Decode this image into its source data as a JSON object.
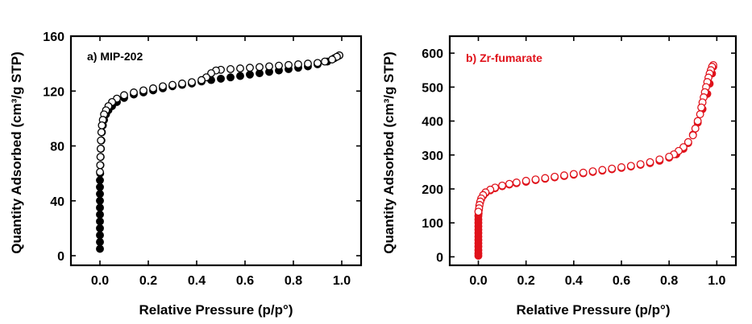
{
  "chart_data": [
    {
      "type": "scatter",
      "panel_label": "a) MIP-202",
      "panel_label_color": "#000000",
      "xlabel": "Relative Pressure (p/p°)",
      "ylabel": "Quantity Adsorbed (cm³/g STP)",
      "xlim": [
        -0.12,
        1.08
      ],
      "ylim": [
        -7,
        160
      ],
      "xticks": [
        0.0,
        0.2,
        0.4,
        0.6,
        0.8,
        1.0
      ],
      "xtick_labels": [
        "0.0",
        "0.2",
        "0.4",
        "0.6",
        "0.8",
        "1.0"
      ],
      "yticks": [
        0,
        40,
        80,
        120,
        160
      ],
      "ytick_labels": [
        "0",
        "40",
        "80",
        "120",
        "160"
      ],
      "series": [
        {
          "marker": "filled-circle",
          "color": "#000000",
          "points": [
            [
              0.0,
              5
            ],
            [
              0.0,
              10
            ],
            [
              0.0,
              15
            ],
            [
              0.0,
              20
            ],
            [
              0.0,
              25
            ],
            [
              0.0,
              30
            ],
            [
              0.0,
              35
            ],
            [
              0.0,
              40
            ],
            [
              0.0,
              45
            ],
            [
              0.0,
              50
            ],
            [
              0.0,
              55
            ],
            [
              0.001,
              60
            ],
            [
              0.002,
              66
            ],
            [
              0.003,
              72
            ],
            [
              0.004,
              78
            ],
            [
              0.006,
              84
            ],
            [
              0.008,
              90
            ],
            [
              0.012,
              95
            ],
            [
              0.017,
              99
            ],
            [
              0.025,
              103
            ],
            [
              0.035,
              106
            ],
            [
              0.05,
              109
            ],
            [
              0.07,
              112
            ],
            [
              0.1,
              115
            ],
            [
              0.14,
              117.5
            ],
            [
              0.18,
              119
            ],
            [
              0.22,
              120.5
            ],
            [
              0.26,
              122
            ],
            [
              0.3,
              123.5
            ],
            [
              0.34,
              124.5
            ],
            [
              0.38,
              125.5
            ],
            [
              0.42,
              127
            ],
            [
              0.46,
              128
            ],
            [
              0.5,
              129
            ],
            [
              0.54,
              130
            ],
            [
              0.58,
              131
            ],
            [
              0.62,
              132
            ],
            [
              0.66,
              133
            ],
            [
              0.7,
              134
            ],
            [
              0.74,
              135
            ],
            [
              0.78,
              136
            ],
            [
              0.82,
              137
            ],
            [
              0.86,
              138
            ],
            [
              0.9,
              139.5
            ],
            [
              0.94,
              141.5
            ],
            [
              0.97,
              144
            ],
            [
              0.99,
              146
            ]
          ]
        },
        {
          "marker": "open-circle",
          "color": "#000000",
          "points": [
            [
              0.99,
              146
            ],
            [
              0.98,
              145
            ],
            [
              0.96,
              143
            ],
            [
              0.93,
              141.5
            ],
            [
              0.9,
              140.5
            ],
            [
              0.86,
              140
            ],
            [
              0.82,
              139.5
            ],
            [
              0.78,
              139
            ],
            [
              0.74,
              138.5
            ],
            [
              0.7,
              138
            ],
            [
              0.66,
              137.5
            ],
            [
              0.62,
              137
            ],
            [
              0.58,
              136.5
            ],
            [
              0.54,
              136
            ],
            [
              0.5,
              135.5
            ],
            [
              0.48,
              135
            ],
            [
              0.46,
              133
            ],
            [
              0.44,
              130
            ],
            [
              0.42,
              128
            ],
            [
              0.38,
              126.5
            ],
            [
              0.34,
              125.5
            ],
            [
              0.3,
              124.5
            ],
            [
              0.26,
              123.5
            ],
            [
              0.22,
              122
            ],
            [
              0.18,
              120.5
            ],
            [
              0.14,
              119
            ],
            [
              0.1,
              117
            ],
            [
              0.07,
              114.5
            ],
            [
              0.05,
              112
            ],
            [
              0.035,
              109
            ],
            [
              0.025,
              106
            ],
            [
              0.017,
              103
            ],
            [
              0.012,
              99
            ],
            [
              0.008,
              95
            ],
            [
              0.006,
              90
            ],
            [
              0.004,
              84
            ],
            [
              0.003,
              78
            ],
            [
              0.002,
              72
            ],
            [
              0.001,
              66
            ],
            [
              0.0,
              61
            ]
          ]
        }
      ]
    },
    {
      "type": "scatter",
      "panel_label": "b) Zr-fumarate",
      "panel_label_color": "#e0121b",
      "xlabel": "Relative Pressure (p/p°)",
      "ylabel": "Quantity Adsorbed (cm³/g STP)",
      "xlim": [
        -0.12,
        1.08
      ],
      "ylim": [
        -25,
        650
      ],
      "xticks": [
        0.0,
        0.2,
        0.4,
        0.6,
        0.8,
        1.0
      ],
      "xtick_labels": [
        "0.0",
        "0.2",
        "0.4",
        "0.6",
        "0.8",
        "1.0"
      ],
      "yticks": [
        0,
        100,
        200,
        300,
        400,
        500,
        600
      ],
      "ytick_labels": [
        "0",
        "100",
        "200",
        "300",
        "400",
        "500",
        "600"
      ],
      "series": [
        {
          "marker": "filled-circle",
          "color": "#e0121b",
          "points": [
            [
              0.0,
              3
            ],
            [
              0.0,
              10
            ],
            [
              0.0,
              20
            ],
            [
              0.0,
              30
            ],
            [
              0.0,
              40
            ],
            [
              0.0,
              50
            ],
            [
              0.0,
              60
            ],
            [
              0.0,
              70
            ],
            [
              0.0,
              80
            ],
            [
              0.0,
              90
            ],
            [
              0.0,
              100
            ],
            [
              0.0,
              110
            ],
            [
              0.0,
              120
            ],
            [
              0.001,
              128
            ],
            [
              0.002,
              138
            ],
            [
              0.004,
              150
            ],
            [
              0.007,
              160
            ],
            [
              0.012,
              170
            ],
            [
              0.02,
              180
            ],
            [
              0.03,
              188
            ],
            [
              0.05,
              196
            ],
            [
              0.07,
              202
            ],
            [
              0.1,
              208
            ],
            [
              0.13,
              213
            ],
            [
              0.16,
              217
            ],
            [
              0.2,
              221
            ],
            [
              0.24,
              226
            ],
            [
              0.28,
              230
            ],
            [
              0.32,
              234
            ],
            [
              0.36,
              238
            ],
            [
              0.4,
              242
            ],
            [
              0.44,
              246
            ],
            [
              0.48,
              250
            ],
            [
              0.52,
              254
            ],
            [
              0.56,
              258
            ],
            [
              0.6,
              262
            ],
            [
              0.64,
              266
            ],
            [
              0.68,
              271
            ],
            [
              0.72,
              276
            ],
            [
              0.76,
              283
            ],
            [
              0.8,
              292
            ],
            [
              0.83,
              302
            ],
            [
              0.86,
              318
            ],
            [
              0.88,
              335
            ],
            [
              0.9,
              360
            ],
            [
              0.92,
              395
            ],
            [
              0.94,
              435
            ],
            [
              0.96,
              480
            ],
            [
              0.97,
              510
            ],
            [
              0.98,
              540
            ],
            [
              0.985,
              560
            ]
          ]
        },
        {
          "marker": "open-circle",
          "color": "#e0121b",
          "points": [
            [
              0.985,
              565
            ],
            [
              0.98,
              560
            ],
            [
              0.975,
              550
            ],
            [
              0.97,
              540
            ],
            [
              0.965,
              528
            ],
            [
              0.96,
              515
            ],
            [
              0.955,
              500
            ],
            [
              0.95,
              485
            ],
            [
              0.945,
              470
            ],
            [
              0.94,
              455
            ],
            [
              0.935,
              440
            ],
            [
              0.93,
              420
            ],
            [
              0.92,
              400
            ],
            [
              0.91,
              378
            ],
            [
              0.9,
              358
            ],
            [
              0.88,
              338
            ],
            [
              0.86,
              323
            ],
            [
              0.84,
              312
            ],
            [
              0.82,
              302
            ],
            [
              0.8,
              295
            ],
            [
              0.76,
              287
            ],
            [
              0.72,
              279
            ],
            [
              0.68,
              273
            ],
            [
              0.64,
              268
            ],
            [
              0.6,
              264
            ],
            [
              0.56,
              260
            ],
            [
              0.52,
              256
            ],
            [
              0.48,
              252
            ],
            [
              0.44,
              248
            ],
            [
              0.4,
              244
            ],
            [
              0.36,
              240
            ],
            [
              0.32,
              236
            ],
            [
              0.28,
              232
            ],
            [
              0.24,
              228
            ],
            [
              0.2,
              224
            ],
            [
              0.16,
              219
            ],
            [
              0.13,
              215
            ],
            [
              0.1,
              210
            ],
            [
              0.07,
              204
            ],
            [
              0.05,
              198
            ],
            [
              0.03,
              190
            ],
            [
              0.02,
              182
            ],
            [
              0.012,
              172
            ],
            [
              0.008,
              163
            ],
            [
              0.005,
              153
            ],
            [
              0.003,
              143
            ],
            [
              0.0,
              133
            ]
          ]
        }
      ]
    }
  ]
}
